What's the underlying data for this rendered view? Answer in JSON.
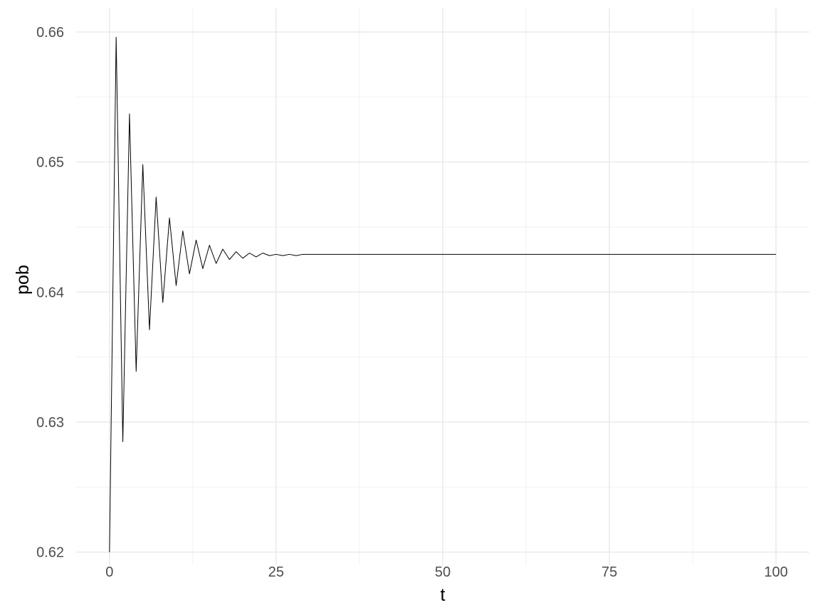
{
  "chart_data": {
    "type": "line",
    "title": "",
    "xlabel": "t",
    "ylabel": "pob",
    "xlim": [
      -5,
      105
    ],
    "ylim": [
      0.619,
      0.6618
    ],
    "x_ticks": [
      0,
      25,
      50,
      75,
      100
    ],
    "x_tick_labels": [
      "0",
      "25",
      "50",
      "75",
      "100"
    ],
    "y_ticks": [
      0.62,
      0.63,
      0.64,
      0.65,
      0.66
    ],
    "y_tick_labels": [
      "0.62",
      "0.63",
      "0.64",
      "0.65",
      "0.66"
    ],
    "grid": true,
    "line_color": "#000000",
    "series": [
      {
        "x": [
          0,
          1,
          2,
          3,
          4,
          5,
          6,
          7,
          8,
          9,
          10,
          11,
          12,
          13,
          14,
          15,
          16,
          17,
          18,
          19,
          20,
          21,
          22,
          23,
          24,
          25,
          26,
          27,
          28,
          29,
          30,
          40,
          50,
          60,
          70,
          80,
          90,
          100
        ],
        "y": [
          0.62,
          0.6596,
          0.6285,
          0.6537,
          0.6339,
          0.6498,
          0.6371,
          0.6473,
          0.6392,
          0.6457,
          0.6405,
          0.6447,
          0.6414,
          0.644,
          0.6418,
          0.6436,
          0.6422,
          0.6433,
          0.6425,
          0.6431,
          0.6426,
          0.643,
          0.6427,
          0.643,
          0.6428,
          0.6429,
          0.6428,
          0.6429,
          0.6428,
          0.6429,
          0.6429,
          0.6429,
          0.6429,
          0.6429,
          0.6429,
          0.6429,
          0.6429,
          0.6429
        ]
      }
    ]
  }
}
